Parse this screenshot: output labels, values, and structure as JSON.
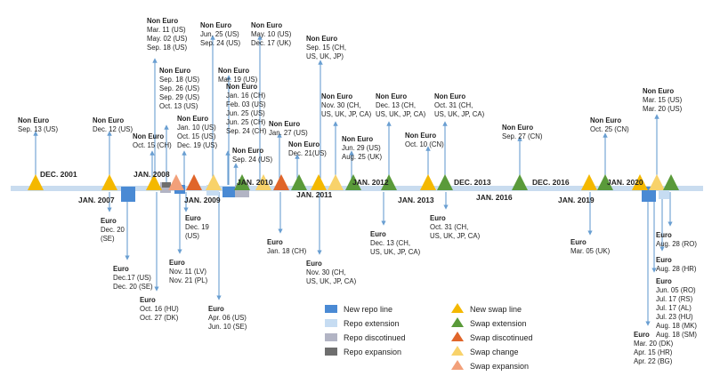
{
  "colors": {
    "axis": "#c9dcef",
    "arrow": "#6a9fd2",
    "text": "#222222",
    "new_swap": "#f4b800",
    "swap_extension": "#5a9a3a",
    "swap_discontinued": "#e0652a",
    "swap_change": "#f8d26a",
    "swap_expansion": "#f2a07a",
    "new_repo": "#4a8ad4",
    "repo_extension": "#c6dcf2",
    "repo_discontinued": "#b2b4c4",
    "repo_expansion": "#6e6e6e"
  },
  "date_labels": [
    {
      "text": "DEC. 2001",
      "pos": "above"
    },
    {
      "text": "JAN. 2007",
      "pos": "below"
    },
    {
      "text": "JAN. 2008",
      "pos": "above"
    },
    {
      "text": "JAN. 2009",
      "pos": "below"
    },
    {
      "text": "JAN. 2010",
      "pos": "above"
    },
    {
      "text": "JAN. 2011",
      "pos": "below"
    },
    {
      "text": "JAN. 2012",
      "pos": "above"
    },
    {
      "text": "JAN. 2013",
      "pos": "below"
    },
    {
      "text": "DEC. 2013",
      "pos": "above"
    },
    {
      "text": "JAN. 2016",
      "pos": "below"
    },
    {
      "text": "DEC. 2016",
      "pos": "above"
    },
    {
      "text": "JAN. 2019",
      "pos": "below"
    },
    {
      "text": "JAN. 2020",
      "pos": "above"
    }
  ],
  "events": [
    {
      "header": "Non Euro",
      "lines": [
        "Sep. 13 (US)"
      ],
      "dir": "up"
    },
    {
      "header": "Non Euro",
      "lines": [
        "Dec. 12 (US)"
      ],
      "dir": "up"
    },
    {
      "header": "Euro",
      "lines": [
        "Dec. 20",
        "(SE)"
      ],
      "dir": "down"
    },
    {
      "header": "Euro",
      "lines": [
        "Dec.17 (US)",
        "Dec. 20 (SE)"
      ],
      "dir": "down"
    },
    {
      "header": "Non Euro",
      "lines": [
        "Oct. 15 (CH)"
      ],
      "dir": "up"
    },
    {
      "header": "Non Euro",
      "lines": [
        "Mar. 11 (US)",
        "May. 02 (US)",
        "Sep. 18 (US)"
      ],
      "dir": "up"
    },
    {
      "header": "Non Euro",
      "lines": [
        "Sep. 18 (US)",
        "Sep. 26 (US)",
        "Sep. 29 (US)",
        "Oct. 13 (US)"
      ],
      "dir": "up"
    },
    {
      "header": "Non Euro",
      "lines": [
        "Jan. 10 (US)",
        "Oct. 15 (US)",
        "Dec. 19 (US)"
      ],
      "dir": "up"
    },
    {
      "header": "Euro",
      "lines": [
        "Oct. 16 (HU)",
        "Oct. 27 (DK)"
      ],
      "dir": "down"
    },
    {
      "header": "Euro",
      "lines": [
        "Nov. 11 (LV)",
        "Nov. 21 (PL)"
      ],
      "dir": "down"
    },
    {
      "header": "Euro",
      "lines": [
        "Dec. 19",
        "(US)"
      ],
      "dir": "down"
    },
    {
      "header": "Non Euro",
      "lines": [
        "Jun. 25 (US)",
        "Sep. 24 (US)"
      ],
      "dir": "up"
    },
    {
      "header": "Non Euro",
      "lines": [
        "Mar. 19 (US)"
      ],
      "dir": "up"
    },
    {
      "header": "Non Euro",
      "lines": [
        "Jan. 16 (CH)",
        "Feb. 03 (US)",
        "Jun. 25 (US)",
        "Jun. 25 (CH)",
        "Sep. 24 (CH)"
      ],
      "dir": "up"
    },
    {
      "header": "Non Euro",
      "lines": [
        "Sep. 24 (US)"
      ],
      "dir": "up"
    },
    {
      "header": "Non Euro",
      "lines": [
        "May. 10 (US)",
        "Dec. 17 (UK)"
      ],
      "dir": "up"
    },
    {
      "header": "Euro",
      "lines": [
        "Apr. 06 (US)",
        "Jun. 10 (SE)"
      ],
      "dir": "down"
    },
    {
      "header": "Non Euro",
      "lines": [
        "Jan. 27 (US)"
      ],
      "dir": "up"
    },
    {
      "header": "Euro",
      "lines": [
        "Jan. 18 (CH)"
      ],
      "dir": "down"
    },
    {
      "header": "Non Euro",
      "lines": [
        "Dec. 21(US)"
      ],
      "dir": "up"
    },
    {
      "header": "Non Euro",
      "lines": [
        "Sep. 15 (CH,",
        "US, UK, JP)"
      ],
      "dir": "up"
    },
    {
      "header": "Euro",
      "lines": [
        "Nov.    30   (CH,",
        "US, UK, JP, CA)"
      ],
      "dir": "down"
    },
    {
      "header": "Non Euro",
      "lines": [
        "Nov.   30   (CH,",
        "US, UK, JP, CA)"
      ],
      "dir": "up"
    },
    {
      "header": "Non Euro",
      "lines": [
        "Jun. 29 (US)",
        "Aug. 25 (UK)"
      ],
      "dir": "up"
    },
    {
      "header": "Non Euro",
      "lines": [
        "Dec.    13   (CH,",
        "US, UK, JP, CA)"
      ],
      "dir": "up"
    },
    {
      "header": "Euro",
      "lines": [
        "Dec.    13   (CH,",
        "US, UK, JP, CA)"
      ],
      "dir": "down"
    },
    {
      "header": "Non Euro",
      "lines": [
        "Oct. 10 (CN)"
      ],
      "dir": "up"
    },
    {
      "header": "Non Euro",
      "lines": [
        "Oct.    31   (CH,",
        "US, UK, JP, CA)"
      ],
      "dir": "up"
    },
    {
      "header": "Euro",
      "lines": [
        "Oct.    31   (CH,",
        "US, UK, JP, CA)"
      ],
      "dir": "down"
    },
    {
      "header": "Non Euro",
      "lines": [
        "Sep. 27 (CN)"
      ],
      "dir": "up"
    },
    {
      "header": "Euro",
      "lines": [
        "Mar. 05 (UK)"
      ],
      "dir": "down"
    },
    {
      "header": "Non Euro",
      "lines": [
        "Oct. 25 (CN)"
      ],
      "dir": "up"
    },
    {
      "header": "Non Euro",
      "lines": [
        "Mar. 15 (US)",
        "Mar. 20 (US)"
      ],
      "dir": "up"
    },
    {
      "header": "Euro",
      "lines": [
        "Aug. 28 (RO)"
      ],
      "dir": "down"
    },
    {
      "header": "Euro",
      "lines": [
        "Aug. 28 (HR)"
      ],
      "dir": "down"
    },
    {
      "header": "Euro",
      "lines": [
        "Jun. 05 (RO)",
        "Jul. 17 (RS)",
        "Jul. 17 (AL)",
        "Jul. 23 (HU)",
        "Aug. 18 (MK)",
        "Aug. 18 (SM)"
      ],
      "dir": "down"
    },
    {
      "header": "Euro",
      "lines": [
        "Mar. 20 (DK)",
        "Apr. 15 (HR)",
        "Apr. 22 (BG)"
      ],
      "dir": "down"
    }
  ],
  "legend": {
    "repo": [
      {
        "label": "New repo line",
        "color_key": "new_repo"
      },
      {
        "label": "Repo extension",
        "color_key": "repo_extension"
      },
      {
        "label": "Repo discotinued",
        "color_key": "repo_discontinued"
      },
      {
        "label": "Repo expansion",
        "color_key": "repo_expansion"
      }
    ],
    "swap": [
      {
        "label": "New swap line",
        "color_key": "new_swap"
      },
      {
        "label": "Swap extension",
        "color_key": "swap_extension"
      },
      {
        "label": "Swap discotinued",
        "color_key": "swap_discontinued"
      },
      {
        "label": "Swap change",
        "color_key": "swap_change"
      },
      {
        "label": "Swap expansion",
        "color_key": "swap_expansion"
      }
    ]
  }
}
